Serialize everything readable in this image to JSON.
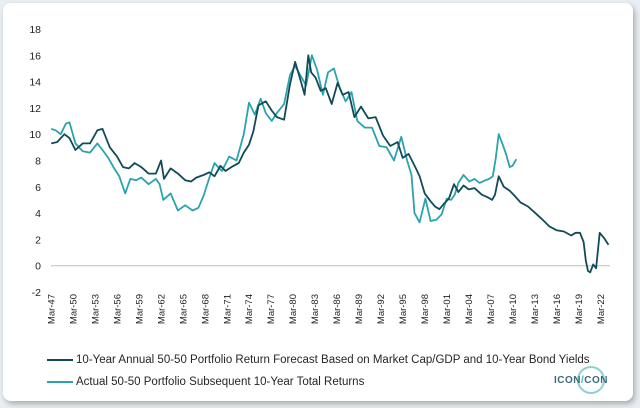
{
  "chart_data": {
    "type": "line",
    "title": "",
    "xlabel": "",
    "ylabel": "",
    "ylim": [
      -2,
      18
    ],
    "xlim": [
      1947.17,
      2023.5
    ],
    "yticks": [
      -2,
      0,
      2,
      4,
      6,
      8,
      10,
      12,
      14,
      16,
      18
    ],
    "xtick_labels": [
      "Mar-47",
      "Mar-50",
      "Mar-53",
      "Mar-56",
      "Mar-59",
      "Mar-62",
      "Mar-65",
      "Mar-68",
      "Mar-71",
      "Mar-74",
      "Mar-77",
      "Mar-80",
      "Mar-83",
      "Mar-86",
      "Mar-89",
      "Mar-92",
      "Mar-95",
      "Mar-98",
      "Mar-01",
      "Mar-04",
      "Mar-07",
      "Mar-10",
      "Mar-13",
      "Mar-16",
      "Mar-19",
      "Mar-22"
    ],
    "xtick_years": [
      1947.17,
      1950.17,
      1953.17,
      1956.17,
      1959.17,
      1962.17,
      1965.17,
      1968.17,
      1971.17,
      1974.17,
      1977.17,
      1980.17,
      1983.17,
      1986.17,
      1989.17,
      1992.17,
      1995.17,
      1998.17,
      2001.17,
      2004.17,
      2007.17,
      2010.17,
      2013.17,
      2016.17,
      2019.17,
      2022.17
    ],
    "series": [
      {
        "name": "10-Year Annual 50-50 Portfolio Return Forecast Based on Market Cap/GDP and 10-Year Bond Yields",
        "color": "#114b57",
        "x": [
          1947.2,
          1948,
          1949,
          1949.7,
          1950.5,
          1951.5,
          1952.5,
          1953.5,
          1954.2,
          1955.2,
          1956.2,
          1957,
          1957.8,
          1958.6,
          1959.5,
          1960.5,
          1961.5,
          1962.2,
          1962.6,
          1963.5,
          1964.5,
          1965.5,
          1966.3,
          1967,
          1968,
          1968.8,
          1969.5,
          1970.3,
          1971,
          1971.8,
          1972.8,
          1973.5,
          1974.2,
          1974.8,
          1975.5,
          1976.5,
          1977.3,
          1978,
          1979,
          1979.8,
          1980.5,
          1981.2,
          1981.8,
          1982.3,
          1982.7,
          1983.3,
          1984,
          1984.7,
          1985.5,
          1986.3,
          1987,
          1987.8,
          1988.6,
          1989.5,
          1990.5,
          1991.5,
          1992.5,
          1993.5,
          1994.5,
          1995.2,
          1996,
          1997,
          1997.5,
          1998.2,
          1999,
          1999.6,
          2000.2,
          2000.8,
          2001.5,
          2002.2,
          2002.8,
          2003.5,
          2004.2,
          2005,
          2006,
          2006.8,
          2007.4,
          2007.8,
          2008.3,
          2009,
          2009.8,
          2010.5,
          2011.3,
          2012.3,
          2013.3,
          2014.3,
          2015.2,
          2016.2,
          2017.2,
          2018.2,
          2018.8,
          2019.4,
          2019.9,
          2020.2,
          2020.5,
          2020.8,
          2021.2,
          2021.6,
          2022.1,
          2022.7,
          2023.3
        ],
        "values": [
          9.3,
          9.4,
          10,
          9.7,
          8.8,
          9.3,
          9.3,
          10.3,
          10.4,
          9,
          8.3,
          7.5,
          7.4,
          7.8,
          7.5,
          7,
          7,
          8,
          6.6,
          7.4,
          7,
          6.5,
          6.4,
          6.7,
          6.9,
          7.1,
          6.8,
          7.6,
          7.2,
          7.5,
          7.8,
          8.6,
          9.2,
          10.2,
          12.2,
          12.5,
          11.8,
          11.3,
          11.1,
          13.8,
          15.5,
          14.2,
          13,
          16,
          14.7,
          14.3,
          13.3,
          13.5,
          12.3,
          13.9,
          13,
          13.2,
          11.3,
          12.1,
          11.2,
          11.3,
          9.9,
          9.1,
          9.4,
          8.2,
          8.5,
          7.4,
          6.8,
          5.5,
          4.9,
          4.5,
          4.3,
          4.7,
          5.1,
          6.2,
          5.6,
          6.1,
          5.8,
          5.9,
          5.4,
          5.2,
          5,
          5.4,
          6.8,
          6,
          5.7,
          5.3,
          4.8,
          4.5,
          4,
          3.5,
          3,
          2.7,
          2.6,
          2.3,
          2.5,
          2.5,
          1.8,
          0.4,
          -0.4,
          -0.5,
          0.1,
          -0.2,
          2.5,
          2.1,
          1.6
        ]
      },
      {
        "name": "Actual 50-50 Portfolio Subsequent 10-Year Total Returns",
        "color": "#2ba3ad",
        "x": [
          1947.2,
          1947.8,
          1948.5,
          1949.2,
          1949.7,
          1950.5,
          1951.5,
          1952.5,
          1953.5,
          1954.2,
          1955,
          1955.8,
          1956.5,
          1957.3,
          1958,
          1958.8,
          1959.5,
          1960.5,
          1961.5,
          1962,
          1962.5,
          1963.5,
          1964.5,
          1965.5,
          1966.5,
          1967.3,
          1968,
          1968.8,
          1969.5,
          1970.5,
          1971.5,
          1972.5,
          1973.5,
          1974.2,
          1975,
          1975.8,
          1976.5,
          1977.3,
          1978,
          1979,
          1979.8,
          1980.5,
          1981.2,
          1982,
          1982.8,
          1983.5,
          1984.3,
          1985,
          1985.8,
          1986.6,
          1987.4,
          1988.2,
          1989,
          1990,
          1991,
          1992,
          1993,
          1994,
          1995,
          1995.8,
          1996.4,
          1996.8,
          1997.5,
          1998.3,
          1999,
          1999.8,
          2000.5,
          2001.2,
          2001.8,
          2002.3,
          2002.8,
          2003.5,
          2004.3,
          2005,
          2005.7,
          2006.5,
          2007,
          2007.5,
          2007.9,
          2008.3,
          2008.8,
          2009.3,
          2009.8,
          2010.2,
          2010.7
        ],
        "values": [
          10.4,
          10.3,
          10,
          10.8,
          10.9,
          9.3,
          8.7,
          8.6,
          9.3,
          8.8,
          8.2,
          7.4,
          6.8,
          5.5,
          6.6,
          6.5,
          6.7,
          6.2,
          6.6,
          6.2,
          5,
          5.5,
          4.2,
          4.6,
          4.2,
          4.4,
          5.3,
          6.7,
          7.8,
          7.2,
          8.3,
          8,
          10,
          12.4,
          11.5,
          12.7,
          11.6,
          11,
          11.6,
          12.3,
          14.5,
          15.2,
          14.5,
          13.7,
          16,
          14.9,
          13,
          14.7,
          15,
          13.5,
          12.5,
          13.2,
          11,
          10.5,
          10.5,
          9.1,
          9,
          8,
          9.8,
          8,
          6.9,
          4,
          3.3,
          5.1,
          3.4,
          3.5,
          3.9,
          5.1,
          5,
          5.4,
          6.3,
          6.9,
          6.4,
          6.6,
          6.3,
          6.5,
          6.6,
          6.8,
          8.2,
          10,
          9.3,
          8.5,
          7.5,
          7.6,
          8.1
        ]
      }
    ]
  },
  "legend": {
    "item1": "10-Year Annual 50-50 Portfolio Return Forecast Based on Market Cap/GDP and 10-Year Bond Yields",
    "item2": "Actual 50-50 Portfolio Subsequent 10-Year Total Returns"
  },
  "logo": {
    "left": "ICON",
    "right": "CON"
  },
  "colors": {
    "forecast": "#114b57",
    "actual": "#2ba3ad",
    "axis": "#bfbfbf"
  }
}
